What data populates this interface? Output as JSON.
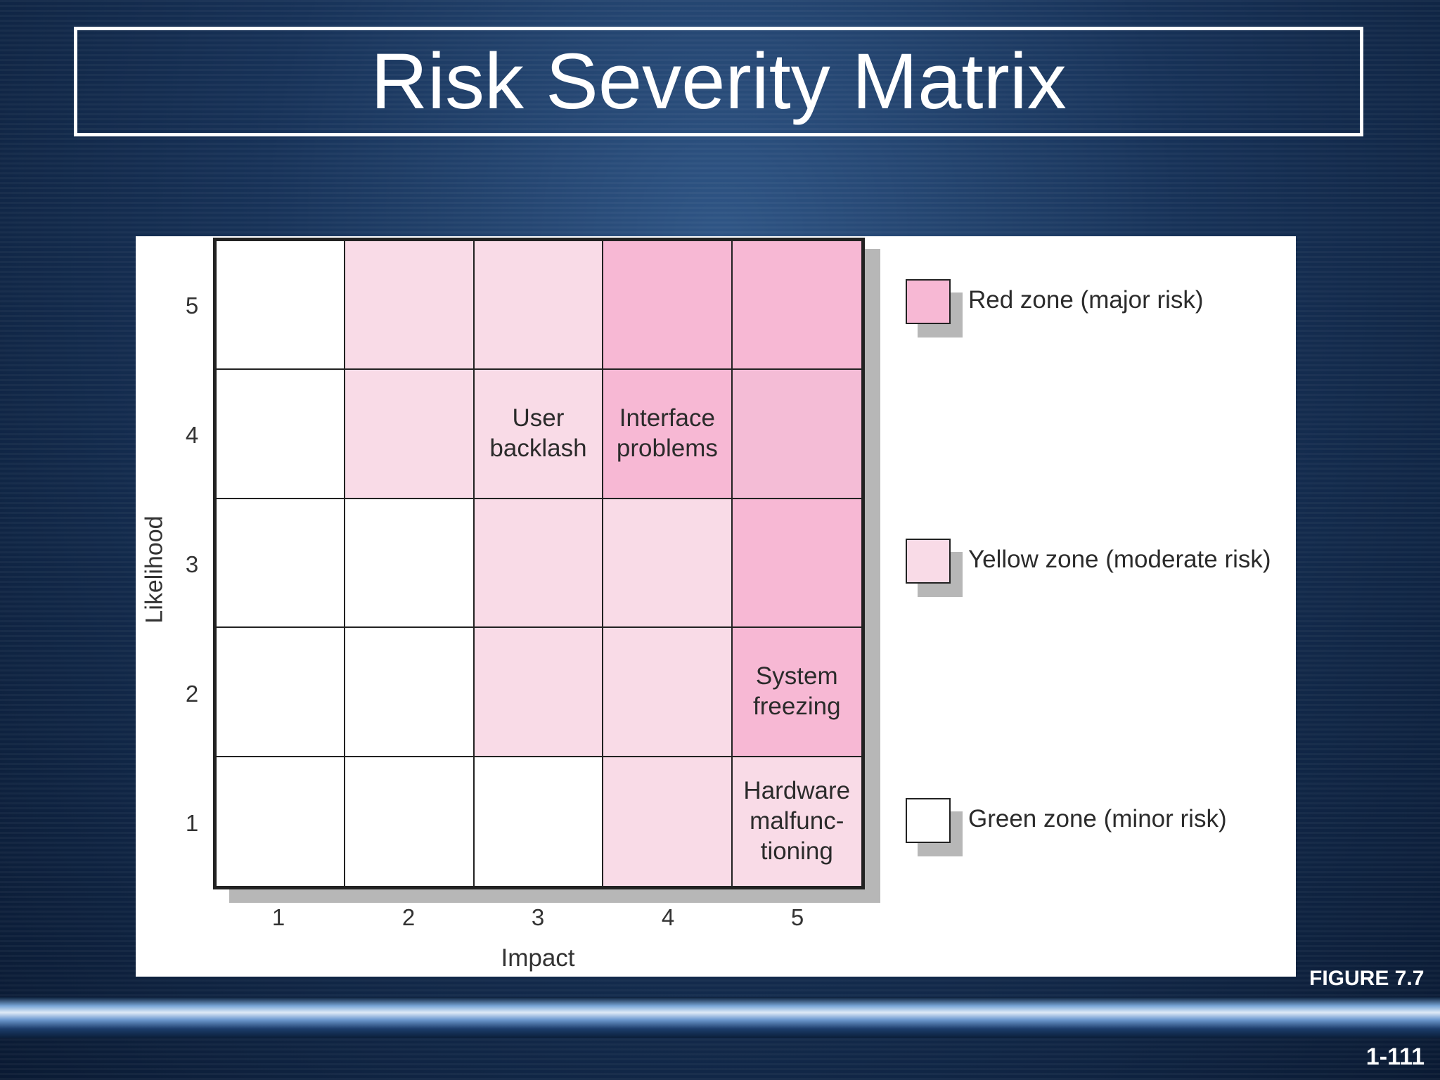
{
  "title": "Risk Severity Matrix",
  "colors": {
    "red_zone": "#f7b8d4",
    "red_zone_alt": "#f4bcd6",
    "yellow_zone": "#f9dbe7",
    "green_zone": "#ffffff",
    "background": "#173258"
  },
  "matrix": {
    "y_axis_label": "Likelihood",
    "x_axis_label": "Impact",
    "y_ticks": [
      "5",
      "4",
      "3",
      "2",
      "1"
    ],
    "x_ticks": [
      "1",
      "2",
      "3",
      "4",
      "5"
    ],
    "rows": [
      [
        {
          "zone": "green",
          "text": ""
        },
        {
          "zone": "yellow",
          "text": ""
        },
        {
          "zone": "yellow",
          "text": ""
        },
        {
          "zone": "red",
          "text": ""
        },
        {
          "zone": "red",
          "text": ""
        }
      ],
      [
        {
          "zone": "green",
          "text": ""
        },
        {
          "zone": "yellow",
          "text": ""
        },
        {
          "zone": "yellow",
          "text": "User\nbacklash"
        },
        {
          "zone": "red",
          "text": "Interface\nproblems"
        },
        {
          "zone": "red_alt",
          "text": ""
        }
      ],
      [
        {
          "zone": "green",
          "text": ""
        },
        {
          "zone": "green",
          "text": ""
        },
        {
          "zone": "yellow",
          "text": ""
        },
        {
          "zone": "yellow",
          "text": ""
        },
        {
          "zone": "red",
          "text": ""
        }
      ],
      [
        {
          "zone": "green",
          "text": ""
        },
        {
          "zone": "green",
          "text": ""
        },
        {
          "zone": "yellow",
          "text": ""
        },
        {
          "zone": "yellow",
          "text": ""
        },
        {
          "zone": "red",
          "text": "System\nfreezing"
        }
      ],
      [
        {
          "zone": "green",
          "text": ""
        },
        {
          "zone": "green",
          "text": ""
        },
        {
          "zone": "green",
          "text": ""
        },
        {
          "zone": "yellow",
          "text": ""
        },
        {
          "zone": "yellow",
          "text": "Hardware\nmalfunc-\ntioning"
        }
      ]
    ]
  },
  "legend": [
    {
      "zone": "red",
      "label": "Red zone (major risk)"
    },
    {
      "zone": "yellow",
      "label": "Yellow zone (moderate risk)"
    },
    {
      "zone": "green",
      "label": "Green zone (minor risk)"
    }
  ],
  "figure_label": "FIGURE 7.7",
  "slide_number": "1-111"
}
